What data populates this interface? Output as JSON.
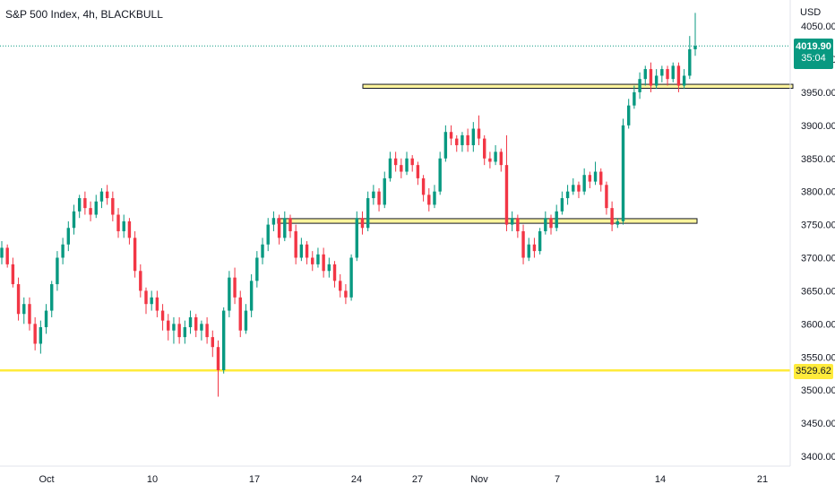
{
  "header": {
    "title": "S&P 500 Index, 4h, BLACKBULL",
    "currency": "USD"
  },
  "last_price": {
    "value": "4019.90",
    "countdown": "35:04"
  },
  "level_label": "3529.62",
  "colors": {
    "up": "#089981",
    "down": "#f23645",
    "level": "#ffeb3b",
    "zone_border": "#131722",
    "grid_dot": "#089981"
  },
  "chart_data": {
    "type": "candlestick",
    "title": "S&P 500 Index, 4h, BLACKBULL",
    "ylim": [
      3380,
      4090
    ],
    "y_ticks": [
      "4050.00",
      "4000.00",
      "3950.00",
      "3900.00",
      "3850.00",
      "3800.00",
      "3750.00",
      "3700.00",
      "3650.00",
      "3600.00",
      "3550.00",
      "3500.00",
      "3450.00",
      "3400.00"
    ],
    "x_ticks": [
      "Oct",
      "10",
      "17",
      "24",
      "27",
      "Nov",
      "7",
      "14",
      "21"
    ],
    "last_price": 4019.9,
    "horizontal_line": 3529.62,
    "zones": [
      {
        "from_date": "Oct 18",
        "to_date": "Nov 11",
        "low": 3752,
        "high": 3759
      },
      {
        "from_date": "Oct 25",
        "to_date": "Nov 16",
        "low": 3956,
        "high": 3962
      }
    ],
    "candles": [
      [
        3700,
        3715,
        3690,
        3725
      ],
      [
        3715,
        3690,
        3685,
        3720
      ],
      [
        3690,
        3660,
        3655,
        3700
      ],
      [
        3660,
        3615,
        3605,
        3670
      ],
      [
        3615,
        3630,
        3600,
        3640
      ],
      [
        3630,
        3600,
        3590,
        3640
      ],
      [
        3600,
        3570,
        3560,
        3610
      ],
      [
        3570,
        3595,
        3555,
        3605
      ],
      [
        3595,
        3620,
        3585,
        3630
      ],
      [
        3620,
        3660,
        3610,
        3665
      ],
      [
        3660,
        3700,
        3650,
        3710
      ],
      [
        3700,
        3720,
        3690,
        3730
      ],
      [
        3720,
        3745,
        3710,
        3755
      ],
      [
        3745,
        3770,
        3735,
        3780
      ],
      [
        3770,
        3790,
        3760,
        3795
      ],
      [
        3790,
        3775,
        3765,
        3800
      ],
      [
        3775,
        3765,
        3755,
        3785
      ],
      [
        3765,
        3785,
        3760,
        3795
      ],
      [
        3785,
        3800,
        3775,
        3805
      ],
      [
        3800,
        3790,
        3780,
        3810
      ],
      [
        3790,
        3765,
        3755,
        3800
      ],
      [
        3765,
        3740,
        3730,
        3775
      ],
      [
        3740,
        3755,
        3730,
        3765
      ],
      [
        3755,
        3730,
        3720,
        3760
      ],
      [
        3730,
        3680,
        3670,
        3740
      ],
      [
        3680,
        3650,
        3640,
        3690
      ],
      [
        3650,
        3630,
        3615,
        3655
      ],
      [
        3630,
        3640,
        3620,
        3650
      ],
      [
        3640,
        3620,
        3610,
        3650
      ],
      [
        3620,
        3605,
        3590,
        3630
      ],
      [
        3605,
        3590,
        3575,
        3615
      ],
      [
        3590,
        3600,
        3570,
        3610
      ],
      [
        3600,
        3580,
        3570,
        3610
      ],
      [
        3580,
        3595,
        3570,
        3605
      ],
      [
        3595,
        3610,
        3585,
        3620
      ],
      [
        3610,
        3590,
        3580,
        3615
      ],
      [
        3590,
        3600,
        3575,
        3605
      ],
      [
        3600,
        3580,
        3570,
        3610
      ],
      [
        3580,
        3565,
        3550,
        3590
      ],
      [
        3565,
        3530,
        3490,
        3575
      ],
      [
        3530,
        3620,
        3525,
        3625
      ],
      [
        3620,
        3670,
        3610,
        3680
      ],
      [
        3670,
        3640,
        3630,
        3685
      ],
      [
        3640,
        3590,
        3580,
        3650
      ],
      [
        3590,
        3620,
        3585,
        3630
      ],
      [
        3620,
        3665,
        3610,
        3675
      ],
      [
        3665,
        3700,
        3655,
        3710
      ],
      [
        3700,
        3720,
        3690,
        3730
      ],
      [
        3720,
        3750,
        3710,
        3760
      ],
      [
        3750,
        3760,
        3740,
        3770
      ],
      [
        3760,
        3730,
        3720,
        3765
      ],
      [
        3730,
        3760,
        3725,
        3770
      ],
      [
        3760,
        3740,
        3730,
        3765
      ],
      [
        3740,
        3700,
        3690,
        3750
      ],
      [
        3700,
        3720,
        3695,
        3730
      ],
      [
        3720,
        3700,
        3690,
        3725
      ],
      [
        3700,
        3690,
        3680,
        3710
      ],
      [
        3690,
        3705,
        3685,
        3715
      ],
      [
        3705,
        3680,
        3670,
        3715
      ],
      [
        3680,
        3690,
        3670,
        3700
      ],
      [
        3690,
        3665,
        3655,
        3695
      ],
      [
        3665,
        3650,
        3640,
        3675
      ],
      [
        3650,
        3640,
        3630,
        3660
      ],
      [
        3640,
        3700,
        3635,
        3705
      ],
      [
        3700,
        3760,
        3695,
        3770
      ],
      [
        3760,
        3745,
        3735,
        3770
      ],
      [
        3745,
        3790,
        3740,
        3800
      ],
      [
        3790,
        3800,
        3780,
        3810
      ],
      [
        3800,
        3780,
        3770,
        3805
      ],
      [
        3780,
        3820,
        3775,
        3830
      ],
      [
        3820,
        3850,
        3815,
        3860
      ],
      [
        3850,
        3840,
        3830,
        3860
      ],
      [
        3840,
        3830,
        3820,
        3850
      ],
      [
        3830,
        3850,
        3825,
        3860
      ],
      [
        3850,
        3840,
        3830,
        3855
      ],
      [
        3840,
        3820,
        3810,
        3845
      ],
      [
        3820,
        3795,
        3785,
        3825
      ],
      [
        3795,
        3780,
        3770,
        3805
      ],
      [
        3780,
        3800,
        3775,
        3810
      ],
      [
        3800,
        3850,
        3795,
        3860
      ],
      [
        3850,
        3890,
        3845,
        3900
      ],
      [
        3890,
        3880,
        3870,
        3900
      ],
      [
        3880,
        3870,
        3860,
        3885
      ],
      [
        3870,
        3885,
        3860,
        3890
      ],
      [
        3885,
        3870,
        3860,
        3895
      ],
      [
        3870,
        3895,
        3860,
        3905
      ],
      [
        3895,
        3880,
        3870,
        3915
      ],
      [
        3880,
        3850,
        3840,
        3885
      ],
      [
        3850,
        3845,
        3835,
        3860
      ],
      [
        3845,
        3860,
        3840,
        3870
      ],
      [
        3860,
        3840,
        3830,
        3865
      ],
      [
        3840,
        3750,
        3740,
        3885
      ],
      [
        3750,
        3760,
        3740,
        3770
      ],
      [
        3760,
        3740,
        3730,
        3765
      ],
      [
        3740,
        3700,
        3690,
        3750
      ],
      [
        3700,
        3720,
        3695,
        3730
      ],
      [
        3720,
        3710,
        3700,
        3730
      ],
      [
        3710,
        3740,
        3705,
        3745
      ],
      [
        3740,
        3760,
        3735,
        3770
      ],
      [
        3760,
        3745,
        3735,
        3765
      ],
      [
        3745,
        3770,
        3740,
        3780
      ],
      [
        3770,
        3790,
        3765,
        3800
      ],
      [
        3790,
        3800,
        3780,
        3810
      ],
      [
        3800,
        3810,
        3795,
        3820
      ],
      [
        3810,
        3800,
        3790,
        3815
      ],
      [
        3800,
        3825,
        3795,
        3835
      ],
      [
        3825,
        3815,
        3805,
        3830
      ],
      [
        3815,
        3830,
        3810,
        3845
      ],
      [
        3830,
        3810,
        3800,
        3835
      ],
      [
        3810,
        3775,
        3765,
        3815
      ],
      [
        3775,
        3750,
        3740,
        3785
      ],
      [
        3750,
        3755,
        3745,
        3760
      ],
      [
        3755,
        3900,
        3750,
        3910
      ],
      [
        3900,
        3930,
        3895,
        3940
      ],
      [
        3930,
        3950,
        3925,
        3960
      ],
      [
        3950,
        3970,
        3940,
        3980
      ],
      [
        3970,
        3985,
        3960,
        3990
      ],
      [
        3985,
        3960,
        3950,
        3995
      ],
      [
        3960,
        3975,
        3955,
        3985
      ],
      [
        3975,
        3985,
        3965,
        3990
      ],
      [
        3985,
        3970,
        3960,
        3990
      ],
      [
        3970,
        3990,
        3965,
        3995
      ],
      [
        3990,
        3960,
        3950,
        3995
      ],
      [
        3960,
        3975,
        3955,
        3985
      ],
      [
        3975,
        4015,
        3970,
        4035
      ],
      [
        4015,
        4020,
        4005,
        4070
      ]
    ]
  }
}
